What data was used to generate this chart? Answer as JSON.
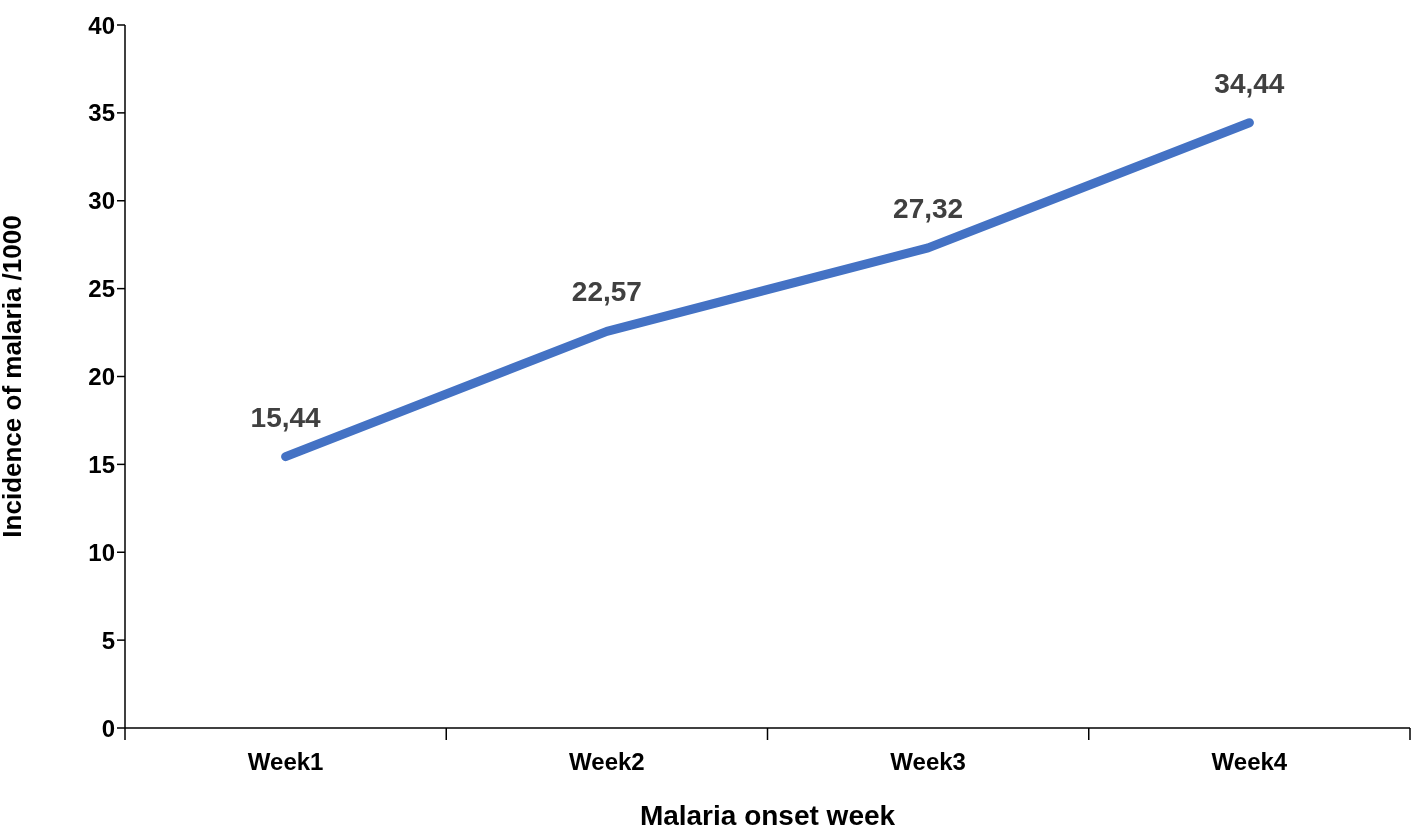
{
  "chart_data": {
    "type": "line",
    "xlabel": "Malaria onset week",
    "ylabel": "Incidence of malaria /1000",
    "categories": [
      "Week1",
      "Week2",
      "Week3",
      "Week4"
    ],
    "series": [
      {
        "color": "#4472c4",
        "values": [
          15.44,
          22.57,
          27.32,
          34.44
        ],
        "value_labels": [
          "15,44",
          "22,57",
          "27,32",
          "34,44"
        ]
      }
    ],
    "ylim": [
      0,
      40
    ],
    "yticks": [
      0,
      5,
      10,
      15,
      20,
      25,
      30,
      35,
      40
    ],
    "marker": "none",
    "line_style": "solid"
  }
}
